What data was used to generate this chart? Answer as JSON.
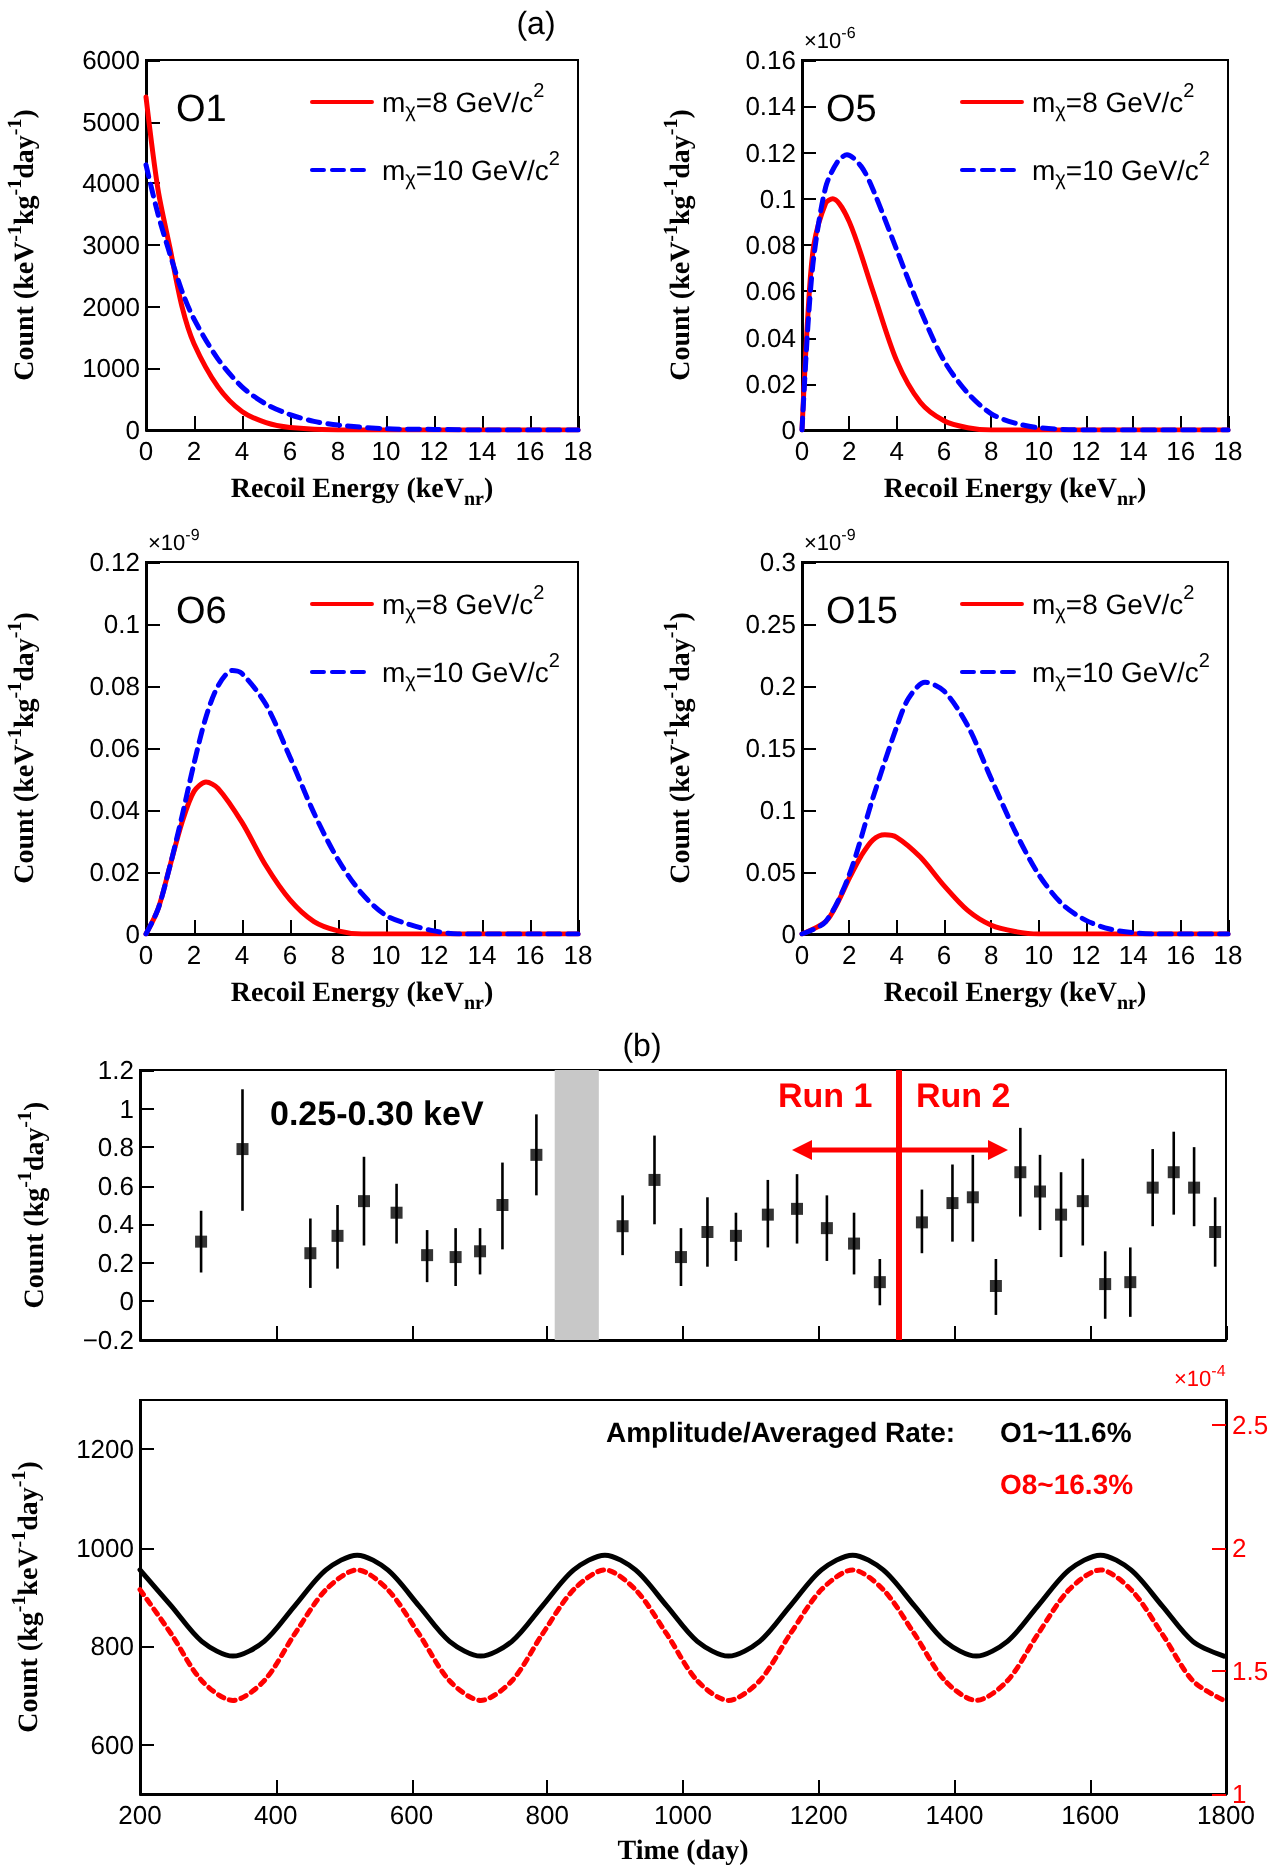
{
  "chart_data": [
    {
      "type": "line",
      "title": "(a)",
      "xlabel": "Recoil Energy (keV$_{nr}$)",
      "ylabel": "Count (keV$^{-1}$kg$^{-1}$day$^{-1}$)",
      "annotations": [
        "O1"
      ],
      "xlim": [
        0,
        18
      ],
      "xticks": [
        0,
        2,
        4,
        6,
        8,
        10,
        12,
        14,
        16,
        18
      ],
      "ylim": [
        0,
        6000
      ],
      "yticks": [
        0,
        1000,
        2000,
        3000,
        4000,
        5000,
        6000
      ],
      "legend": "top right",
      "series": [
        {
          "name": "m$_{χ}$=8 GeV/c$^{2}$",
          "color": "#ff0000",
          "line_style": "solid",
          "x": [
            0,
            0.5,
            1,
            1.5,
            2,
            3,
            4,
            5,
            6,
            8,
            10,
            18
          ],
          "values": [
            5400,
            3900,
            2950,
            2000,
            1400,
            700,
            300,
            120,
            40,
            0,
            0,
            0
          ]
        },
        {
          "name": "m$_{χ}$=10 GeV/c$^{2}$",
          "color": "#0000ff",
          "line_style": "dashed",
          "x": [
            0,
            0.5,
            1,
            1.5,
            2,
            3,
            4,
            5,
            6,
            7,
            8,
            10,
            12,
            14,
            18
          ],
          "values": [
            4300,
            3500,
            2850,
            2250,
            1800,
            1150,
            700,
            420,
            250,
            140,
            80,
            20,
            10,
            0,
            0
          ]
        }
      ]
    },
    {
      "type": "line",
      "xlabel": "Recoil Energy (keV$_{nr}$)",
      "ylabel": "Count (keV$^{-1}$kg$^{-1}$day$^{-1}$)",
      "annotations": [
        "O5",
        "×10$^{-6}$"
      ],
      "xlim": [
        0,
        18
      ],
      "xticks": [
        0,
        2,
        4,
        6,
        8,
        10,
        12,
        14,
        16,
        18
      ],
      "ylim": [
        0,
        0.16
      ],
      "yticks": [
        0,
        0.02,
        0.04,
        0.06,
        0.08,
        0.1,
        0.12,
        0.14,
        0.16
      ],
      "legend": "top right",
      "series": [
        {
          "name": "m$_{χ}$=8 GeV/c$^{2}$",
          "color": "#ff0000",
          "line_style": "solid",
          "x": [
            0,
            0.25,
            0.5,
            1,
            1.3,
            2,
            3,
            4,
            5,
            6,
            7,
            8,
            18
          ],
          "values": [
            0,
            0.05,
            0.08,
            0.098,
            0.1,
            0.09,
            0.06,
            0.03,
            0.012,
            0.004,
            0.001,
            0,
            0
          ]
        },
        {
          "name": "m$_{χ}$=10 GeV/c$^{2}$",
          "color": "#0000ff",
          "line_style": "dashed",
          "x": [
            0,
            0.25,
            0.5,
            1,
            1.5,
            1.9,
            2.5,
            3,
            4,
            5,
            6,
            7,
            8,
            9,
            10,
            12,
            18
          ],
          "values": [
            0,
            0.045,
            0.075,
            0.105,
            0.116,
            0.119,
            0.114,
            0.104,
            0.078,
            0.052,
            0.03,
            0.016,
            0.007,
            0.003,
            0.001,
            0,
            0
          ]
        }
      ]
    },
    {
      "type": "line",
      "xlabel": "Recoil Energy (keV$_{nr}$)",
      "ylabel": "Count (keV$^{-1}$kg$^{-1}$day$^{-1}$)",
      "annotations": [
        "O6",
        "×10$^{-9}$"
      ],
      "xlim": [
        0,
        18
      ],
      "xticks": [
        0,
        2,
        4,
        6,
        8,
        10,
        12,
        14,
        16,
        18
      ],
      "ylim": [
        0,
        0.12
      ],
      "yticks": [
        0,
        0.02,
        0.04,
        0.06,
        0.08,
        0.1,
        0.12
      ],
      "legend": "top right",
      "series": [
        {
          "name": "m$_{χ}$=8 GeV/c$^{2}$",
          "color": "#ff0000",
          "line_style": "solid",
          "x": [
            0,
            0.5,
            1,
            1.5,
            2,
            2.5,
            3,
            4,
            5,
            6,
            7,
            8,
            9,
            18
          ],
          "values": [
            0,
            0.008,
            0.022,
            0.036,
            0.046,
            0.049,
            0.047,
            0.036,
            0.022,
            0.011,
            0.004,
            0.001,
            0,
            0
          ]
        },
        {
          "name": "m$_{χ}$=10 GeV/c$^{2}$",
          "color": "#0000ff",
          "line_style": "dashed",
          "x": [
            0,
            0.5,
            1,
            1.5,
            2,
            2.5,
            3,
            3.6,
            4,
            5,
            6,
            7,
            8,
            9,
            10,
            11,
            12,
            13,
            18
          ],
          "values": [
            0,
            0.008,
            0.022,
            0.038,
            0.055,
            0.07,
            0.08,
            0.085,
            0.084,
            0.074,
            0.057,
            0.039,
            0.024,
            0.013,
            0.006,
            0.003,
            0.001,
            0,
            0
          ]
        }
      ]
    },
    {
      "type": "line",
      "xlabel": "Recoil Energy (keV$_{nr}$)",
      "ylabel": "Count (keV$^{-1}$kg$^{-1}$day$^{-1}$)",
      "annotations": [
        "O15",
        "×10$^{-9}$"
      ],
      "xlim": [
        0,
        18
      ],
      "xticks": [
        0,
        2,
        4,
        6,
        8,
        10,
        12,
        14,
        16,
        18
      ],
      "ylim": [
        0,
        0.3
      ],
      "yticks": [
        0,
        0.05,
        0.1,
        0.15,
        0.2,
        0.25,
        0.3
      ],
      "legend": "top right",
      "series": [
        {
          "name": "m$_{χ}$=8 GeV/c$^{2}$",
          "color": "#ff0000",
          "line_style": "solid",
          "x": [
            0,
            1,
            1.5,
            2,
            2.5,
            3,
            3.5,
            4,
            5,
            6,
            7,
            8,
            9,
            10,
            18
          ],
          "values": [
            0,
            0.01,
            0.025,
            0.045,
            0.063,
            0.076,
            0.08,
            0.078,
            0.062,
            0.039,
            0.019,
            0.007,
            0.002,
            0,
            0
          ]
        },
        {
          "name": "m$_{χ}$=10 GeV/c$^{2}$",
          "color": "#0000ff",
          "line_style": "dashed",
          "x": [
            0,
            1,
            2,
            3,
            4,
            4.5,
            5.2,
            6,
            7,
            8,
            9,
            10,
            11,
            12,
            13,
            14,
            15,
            18
          ],
          "values": [
            0,
            0.01,
            0.048,
            0.11,
            0.167,
            0.19,
            0.203,
            0.196,
            0.168,
            0.125,
            0.083,
            0.048,
            0.024,
            0.011,
            0.004,
            0.001,
            0,
            0
          ]
        }
      ]
    },
    {
      "type": "scatter",
      "title": "(b)",
      "ylabel": "Count (kg$^{-1}$day$^{-1}$)",
      "annotations": [
        "0.25-0.30 keV",
        "Run 1",
        "Run 2"
      ],
      "tick_labels": "y",
      "marker": "square",
      "xlim": [
        200,
        1800
      ],
      "xticks": [
        {
          "value": 200,
          "label": null
        },
        {
          "value": 400,
          "label": null
        },
        {
          "value": 600,
          "label": null
        },
        {
          "value": 800,
          "label": null
        },
        {
          "value": 1000,
          "label": null
        },
        {
          "value": 1200,
          "label": null
        },
        {
          "value": 1400,
          "label": null
        },
        {
          "value": 1600,
          "label": null
        },
        {
          "value": 1800,
          "label": null
        }
      ],
      "ylim": [
        -0.2,
        1.2
      ],
      "yticks": [
        {
          "value": -0.2,
          "label": "−0.2"
        },
        0,
        0.2,
        0.4,
        0.6,
        0.8,
        1,
        1.2
      ],
      "ref_lines": [
        {
          "axis": "x",
          "value": 1318,
          "color": "#ff0000"
        }
      ],
      "bands": [
        {
          "axis": "x",
          "from": 811,
          "to": 876,
          "color": "#c8c8c8"
        }
      ],
      "series": [
        {
          "color": "#000000",
          "x": [
            290,
            351,
            451,
            491,
            530,
            578,
            623,
            665,
            701,
            734,
            784,
            911,
            958,
            997,
            1036,
            1078,
            1125,
            1168,
            1212,
            1252,
            1290,
            1352,
            1397,
            1427,
            1461,
            1497,
            1526,
            1557,
            1589,
            1622,
            1659,
            1692,
            1723,
            1753,
            1784
          ],
          "values": [
            0.31,
            0.79,
            0.25,
            0.34,
            0.52,
            0.46,
            0.24,
            0.23,
            0.26,
            0.5,
            0.76,
            0.39,
            0.63,
            0.23,
            0.36,
            0.34,
            0.45,
            0.48,
            0.38,
            0.3,
            0.1,
            0.41,
            0.51,
            0.54,
            0.08,
            0.67,
            0.57,
            0.45,
            0.52,
            0.09,
            0.1,
            0.59,
            0.67,
            0.59,
            0.36
          ],
          "errors": [
            [
              0.15,
              0.47
            ],
            [
              0.47,
              1.1
            ],
            [
              0.07,
              0.43
            ],
            [
              0.17,
              0.5
            ],
            [
              0.29,
              0.75
            ],
            [
              0.3,
              0.61
            ],
            [
              0.1,
              0.37
            ],
            [
              0.08,
              0.38
            ],
            [
              0.14,
              0.38
            ],
            [
              0.27,
              0.72
            ],
            [
              0.55,
              0.97
            ],
            [
              0.24,
              0.55
            ],
            [
              0.4,
              0.86
            ],
            [
              0.08,
              0.38
            ],
            [
              0.18,
              0.54
            ],
            [
              0.21,
              0.46
            ],
            [
              0.28,
              0.63
            ],
            [
              0.3,
              0.66
            ],
            [
              0.21,
              0.55
            ],
            [
              0.14,
              0.46
            ],
            [
              -0.02,
              0.22
            ],
            [
              0.25,
              0.58
            ],
            [
              0.31,
              0.71
            ],
            [
              0.31,
              0.76
            ],
            [
              -0.07,
              0.22
            ],
            [
              0.44,
              0.9
            ],
            [
              0.37,
              0.76
            ],
            [
              0.23,
              0.67
            ],
            [
              0.29,
              0.74
            ],
            [
              -0.09,
              0.26
            ],
            [
              -0.08,
              0.28
            ],
            [
              0.39,
              0.79
            ],
            [
              0.45,
              0.88
            ],
            [
              0.39,
              0.8
            ],
            [
              0.18,
              0.54
            ]
          ]
        }
      ]
    },
    {
      "type": "line",
      "xlabel": "Time (day)",
      "ylabel": "Count (kg$^{-1}$keV$^{-1}$day$^{-1}$)",
      "annotations": [
        "Amplitude/Averaged Rate:",
        "O1~11.6%",
        "O8~16.3%",
        "×10$^{-4}$"
      ],
      "xlim": [
        200,
        1800
      ],
      "xticks": [
        200,
        400,
        600,
        800,
        1000,
        1200,
        1400,
        1600,
        1800
      ],
      "ylim": [
        500,
        1300
      ],
      "yticks": [
        600,
        800,
        1000,
        1200
      ],
      "y2lim": [
        1,
        2.6
      ],
      "y2ticks": [
        1,
        1.5,
        2,
        2.5
      ],
      "x": [
        200,
        246,
        291,
        337,
        383,
        428,
        474,
        520,
        565,
        611,
        656,
        702,
        748,
        793,
        839,
        885,
        930,
        976,
        1021,
        1067,
        1113,
        1158,
        1204,
        1250,
        1295,
        1341,
        1386,
        1432,
        1478,
        1523,
        1569,
        1615,
        1660,
        1706,
        1751,
        1797
      ],
      "series": [
        {
          "color": "#000000",
          "line_style": "solid",
          "values": [
            955,
            882,
            810,
            780,
            810,
            882,
            955,
            985,
            955,
            882,
            810,
            780,
            810,
            882,
            955,
            985,
            955,
            882,
            810,
            780,
            810,
            882,
            955,
            985,
            955,
            882,
            810,
            780,
            810,
            882,
            955,
            985,
            955,
            882,
            810,
            780
          ]
        },
        {
          "color": "#ff0000",
          "line_style": "dotted",
          "axis": "y2",
          "values": [
            1.83,
            1.65,
            1.46,
            1.38,
            1.46,
            1.65,
            1.83,
            1.91,
            1.83,
            1.65,
            1.46,
            1.38,
            1.46,
            1.65,
            1.83,
            1.91,
            1.83,
            1.65,
            1.46,
            1.38,
            1.46,
            1.65,
            1.83,
            1.91,
            1.83,
            1.65,
            1.46,
            1.38,
            1.46,
            1.65,
            1.83,
            1.91,
            1.83,
            1.65,
            1.46,
            1.38
          ]
        }
      ]
    }
  ]
}
